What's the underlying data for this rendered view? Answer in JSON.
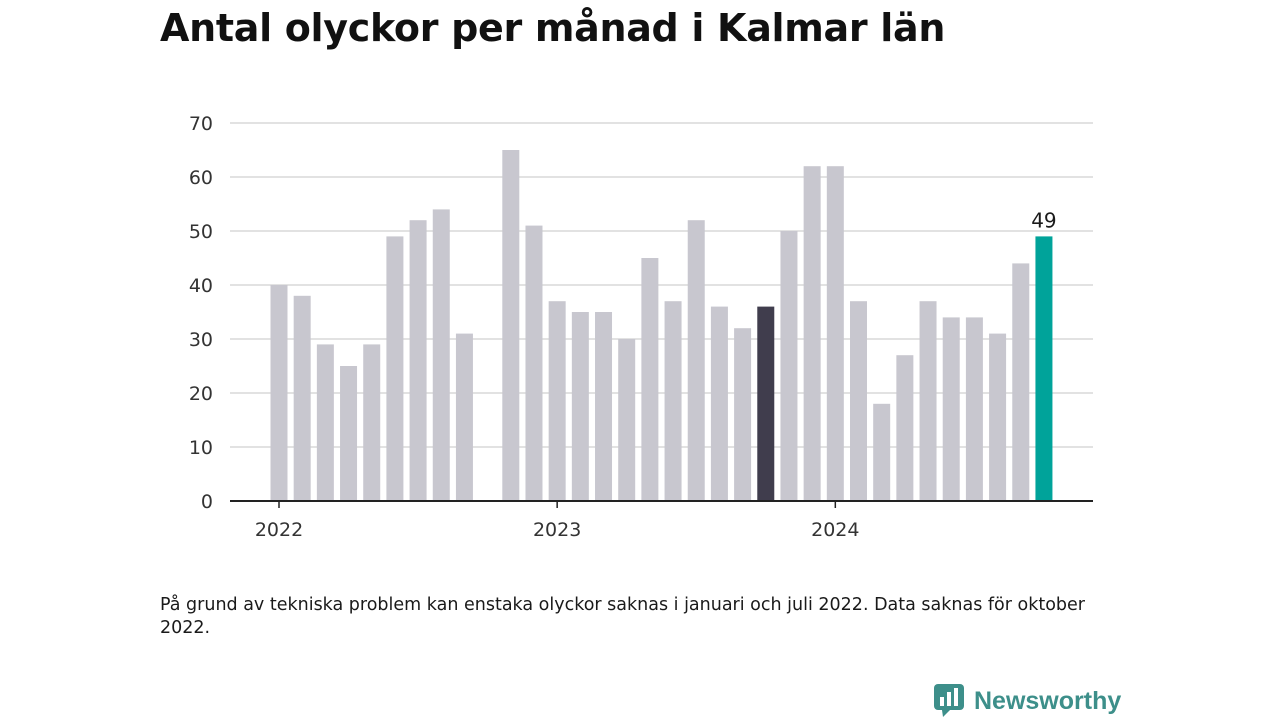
{
  "title": "Antal olyckor per månad i Kalmar län",
  "note": "På grund av tekniska problem kan enstaka olyckor saknas i januari och juli 2022. Data saknas för oktober 2022.",
  "brand": {
    "name": "Newsworthy",
    "icon": "newsworthy-logo-icon"
  },
  "colors": {
    "default": "#c8c7cf",
    "highlight": "#403d4d",
    "latest": "#00a39a",
    "grid": "#d8d8d8",
    "axis": "#222222"
  },
  "chart_data": {
    "type": "bar",
    "x": [
      "2022-01",
      "2022-02",
      "2022-03",
      "2022-04",
      "2022-05",
      "2022-06",
      "2022-07",
      "2022-08",
      "2022-09",
      "2022-10",
      "2022-11",
      "2022-12",
      "2023-01",
      "2023-02",
      "2023-03",
      "2023-04",
      "2023-05",
      "2023-06",
      "2023-07",
      "2023-08",
      "2023-09",
      "2023-10",
      "2023-11",
      "2023-12",
      "2024-01",
      "2024-02",
      "2024-03",
      "2024-04",
      "2024-05",
      "2024-06",
      "2024-07",
      "2024-08",
      "2024-09",
      "2024-10"
    ],
    "values": [
      40,
      38,
      29,
      25,
      29,
      49,
      52,
      54,
      31,
      null,
      65,
      51,
      37,
      35,
      35,
      30,
      45,
      37,
      52,
      36,
      32,
      36,
      50,
      62,
      62,
      37,
      18,
      27,
      37,
      34,
      34,
      31,
      44,
      49
    ],
    "highlight_index": 21,
    "latest_index": 33,
    "data_labels": [
      {
        "index": 33,
        "text": "49"
      }
    ],
    "ylim": [
      0,
      70
    ],
    "yticks": [
      0,
      10,
      20,
      30,
      40,
      50,
      60,
      70
    ],
    "xtick_labels": [
      {
        "index": 0,
        "text": "2022"
      },
      {
        "index": 12,
        "text": "2023"
      },
      {
        "index": 24,
        "text": "2024"
      }
    ],
    "grid": true,
    "xlabel": "",
    "ylabel": ""
  }
}
